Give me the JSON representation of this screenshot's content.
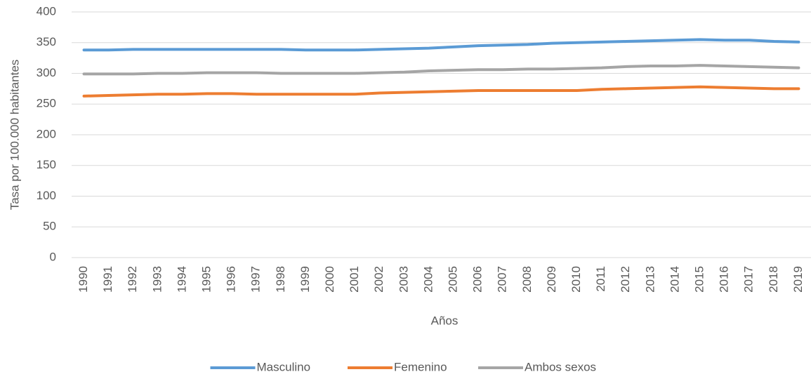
{
  "chart_data": {
    "type": "line",
    "x_label": "Años",
    "y_label": "Tasa por 100.000 habitantes",
    "categories": [
      "1990",
      "1991",
      "1992",
      "1993",
      "1994",
      "1995",
      "1996",
      "1997",
      "1998",
      "1999",
      "2000",
      "2001",
      "2002",
      "2003",
      "2004",
      "2005",
      "2006",
      "2007",
      "2008",
      "2009",
      "2010",
      "2011",
      "2012",
      "2013",
      "2014",
      "2015",
      "2016",
      "2017",
      "2018",
      "2019"
    ],
    "series": [
      {
        "name": "Masculino",
        "color": "#5b9bd5",
        "values": [
          338,
          338,
          339,
          339,
          339,
          339,
          339,
          339,
          339,
          338,
          338,
          338,
          339,
          340,
          341,
          343,
          345,
          346,
          347,
          349,
          350,
          351,
          352,
          353,
          354,
          355,
          354,
          354,
          352,
          351
        ]
      },
      {
        "name": "Femenino",
        "color": "#ed7d31",
        "values": [
          263,
          264,
          265,
          266,
          266,
          267,
          267,
          266,
          266,
          266,
          266,
          266,
          268,
          269,
          270,
          271,
          272,
          272,
          272,
          272,
          272,
          274,
          275,
          276,
          277,
          278,
          277,
          276,
          275,
          275
        ]
      },
      {
        "name": "Ambos sexos",
        "color": "#a5a5a5",
        "values": [
          299,
          299,
          299,
          300,
          300,
          301,
          301,
          301,
          300,
          300,
          300,
          300,
          301,
          302,
          304,
          305,
          306,
          306,
          307,
          307,
          308,
          309,
          311,
          312,
          312,
          313,
          312,
          311,
          310,
          309
        ]
      }
    ],
    "ylim": [
      0,
      400
    ],
    "yticks": [
      0,
      50,
      100,
      150,
      200,
      250,
      300,
      350,
      400
    ],
    "grid": true,
    "legend": "bottom"
  }
}
